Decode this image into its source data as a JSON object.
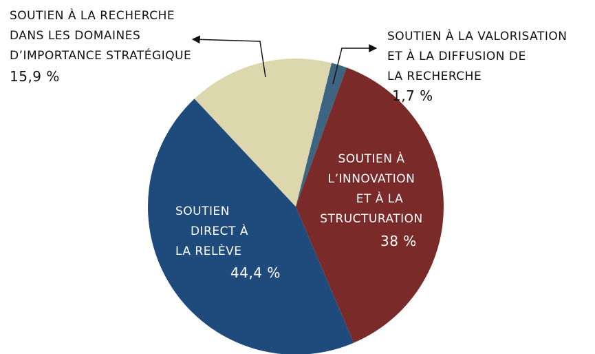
{
  "chart_data": {
    "type": "pie",
    "categories": [
      "SOUTIEN À LA VALORISATION\nET À LA DIFFUSION DE\nLA RECHERCHE",
      "SOUTIEN À\nL’INNOVATION\nET À LA\nSTRUCTURATION",
      "SOUTIEN\nDIRECT À\nLA RELÈVE",
      "SOUTIEN À LA RECHERCHE\nDANS LES DOMAINES\nD’IMPORTANCE STRATÉGIQUE"
    ],
    "values": [
      1.7,
      38,
      44.4,
      15.9
    ],
    "value_labels": [
      "1,7 %",
      "38 %",
      "44,4 %",
      "15,9 %"
    ],
    "colors": [
      "#3d6582",
      "#7a2b29",
      "#1f4b7c",
      "#ddd7ae"
    ]
  }
}
